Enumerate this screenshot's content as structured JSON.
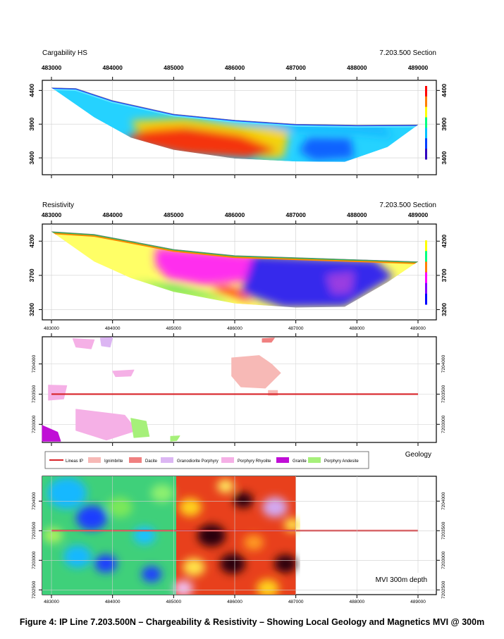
{
  "caption": "Figure 4: IP Line 7.203.500N – Chargeability & Resistivity – Showing Local Geology and Magnetics MVI @ 300m",
  "chart_data": [
    {
      "type": "heatmap",
      "id": "chargeability",
      "title": "Cargability HS",
      "subtitle": "7.203.500 Section",
      "x_ticks": [
        483000,
        484000,
        485000,
        486000,
        487000,
        488000,
        489000
      ],
      "y_ticks": [
        4400,
        3900,
        3400
      ],
      "xlim": [
        482850,
        489300
      ],
      "ylim": [
        3150,
        4550
      ],
      "surface": [
        [
          483000,
          4440
        ],
        [
          483400,
          4430
        ],
        [
          484000,
          4250
        ],
        [
          485000,
          4050
        ],
        [
          486000,
          3960
        ],
        [
          487000,
          3900
        ],
        [
          488000,
          3885
        ],
        [
          489000,
          3890
        ]
      ],
      "bottom": [
        [
          483000,
          4440
        ],
        [
          483700,
          4000
        ],
        [
          484300,
          3700
        ],
        [
          485000,
          3520
        ],
        [
          486000,
          3390
        ],
        [
          487000,
          3345
        ],
        [
          487800,
          3340
        ],
        [
          488500,
          3560
        ],
        [
          489000,
          3890
        ]
      ],
      "zones": [
        {
          "name": "high",
          "color": "#ff2a00",
          "poly": [
            [
              484200,
              3700
            ],
            [
              484800,
              3900
            ],
            [
              485500,
              3820
            ],
            [
              486300,
              3720
            ],
            [
              486700,
              3500
            ],
            [
              486200,
              3400
            ],
            [
              485200,
              3450
            ],
            [
              484500,
              3580
            ]
          ]
        },
        {
          "name": "moderate",
          "color": "#ffd400",
          "poly": [
            [
              484300,
              3950
            ],
            [
              485200,
              3990
            ],
            [
              486100,
              3880
            ],
            [
              486900,
              3820
            ],
            [
              486800,
              3400
            ],
            [
              486300,
              3380
            ],
            [
              486700,
              3520
            ],
            [
              486100,
              3740
            ],
            [
              485200,
              3860
            ],
            [
              484400,
              3800
            ]
          ]
        },
        {
          "name": "low",
          "color": "#0a5cff",
          "poly": [
            [
              487200,
              3700
            ],
            [
              487900,
              3690
            ],
            [
              487950,
              3400
            ],
            [
              487300,
              3360
            ],
            [
              487050,
              3500
            ]
          ]
        },
        {
          "name": "low-shallow",
          "color": "#19b8ff",
          "poly": [
            [
              485500,
              4080
            ],
            [
              487000,
              3960
            ],
            [
              488400,
              3910
            ],
            [
              488600,
              3700
            ],
            [
              487800,
              3770
            ],
            [
              486800,
              3800
            ]
          ]
        }
      ],
      "legend": [
        "#ff0000",
        "#ff8000",
        "#ffff00",
        "#00ff80",
        "#00c0ff",
        "#0040ff",
        "#3000c0"
      ]
    },
    {
      "type": "heatmap",
      "id": "resistivity",
      "title": "Resistivity",
      "subtitle": "7.203.500 Section",
      "x_ticks": [
        483000,
        484000,
        485000,
        486000,
        487000,
        488000,
        489000
      ],
      "y_ticks": [
        4200,
        3700,
        3200
      ],
      "xlim": [
        482850,
        489300
      ],
      "ylim": [
        3050,
        4450
      ],
      "surface": [
        [
          483000,
          4340
        ],
        [
          483700,
          4300
        ],
        [
          484300,
          4200
        ],
        [
          485000,
          4080
        ],
        [
          486000,
          3990
        ],
        [
          487000,
          3960
        ],
        [
          488000,
          3930
        ],
        [
          489000,
          3900
        ]
      ],
      "bottom": [
        [
          483000,
          4340
        ],
        [
          483700,
          3900
        ],
        [
          484300,
          3660
        ],
        [
          485000,
          3460
        ],
        [
          486000,
          3290
        ],
        [
          487000,
          3230
        ],
        [
          487800,
          3240
        ],
        [
          488500,
          3600
        ],
        [
          489000,
          3900
        ]
      ],
      "zones": [
        {
          "name": "conductive-magenta",
          "color": "#ff21f5",
          "poly": [
            [
              484700,
              4100
            ],
            [
              485600,
              4050
            ],
            [
              486400,
              3990
            ],
            [
              486200,
              3620
            ],
            [
              485500,
              3560
            ],
            [
              484900,
              3650
            ],
            [
              484700,
              3850
            ]
          ]
        },
        {
          "name": "resistive-blue",
          "color": "#2d1cf3",
          "poly": [
            [
              486300,
              3990
            ],
            [
              487500,
              3945
            ],
            [
              488300,
              3920
            ],
            [
              488600,
              3680
            ],
            [
              487800,
              3240
            ],
            [
              486800,
              3230
            ],
            [
              486100,
              3450
            ],
            [
              486200,
              3700
            ]
          ]
        },
        {
          "name": "green-band",
          "color": "#2fd85a",
          "poly": [
            [
              484300,
              3600
            ],
            [
              485000,
              3460
            ],
            [
              485800,
              3330
            ],
            [
              486000,
              3300
            ],
            [
              485700,
              3400
            ],
            [
              485000,
              3560
            ]
          ]
        },
        {
          "name": "red-band",
          "color": "#ff3000",
          "poly": [
            [
              485600,
              3500
            ],
            [
              486100,
              3360
            ],
            [
              486300,
              3300
            ],
            [
              486100,
              3480
            ],
            [
              485800,
              3560
            ]
          ]
        },
        {
          "name": "purple-patch",
          "color": "#a040e0",
          "poly": [
            [
              487500,
              3700
            ],
            [
              487950,
              3750
            ],
            [
              487900,
              3450
            ],
            [
              487600,
              3430
            ]
          ]
        }
      ],
      "legend": [
        "#ffffff",
        "#ffff00",
        "#00ff80",
        "#ff8000",
        "#ff00ff",
        "#8000ff",
        "#0000ff"
      ]
    },
    {
      "type": "map",
      "id": "geology",
      "title": "Geology",
      "x_ticks": [
        483000,
        484000,
        485000,
        486000,
        487000,
        488000,
        489000
      ],
      "y_ticks": [
        7204000,
        7203500,
        7203000
      ],
      "xlim": [
        482850,
        489300
      ],
      "ylim": [
        7202700,
        7204450
      ],
      "ip_line_y": 7203500,
      "ip_line_x": [
        483000,
        489000
      ],
      "units": [
        {
          "name": "Ignimbrite",
          "color": "#f7b9b6",
          "poly": [
            [
              485950,
              7204100
            ],
            [
              486400,
              7204140
            ],
            [
              486600,
              7204000
            ],
            [
              486750,
              7203850
            ],
            [
              486500,
              7203600
            ],
            [
              486100,
              7203620
            ],
            [
              485950,
              7203800
            ]
          ]
        },
        {
          "name": "Ignimbrite",
          "color": "#f7b9b6",
          "poly": [
            [
              486550,
              7203560
            ],
            [
              486700,
              7203560
            ],
            [
              486700,
              7203480
            ],
            [
              486550,
              7203480
            ]
          ]
        },
        {
          "name": "Porphyry Rhyolite",
          "color": "#f5b0e6",
          "poly": [
            [
              483400,
              7203250
            ],
            [
              484200,
              7203150
            ],
            [
              484400,
              7202900
            ],
            [
              483900,
              7202740
            ],
            [
              483400,
              7202900
            ]
          ]
        },
        {
          "name": "Porphyry Rhyolite",
          "color": "#f5b0e6",
          "poly": [
            [
              482950,
              7203650
            ],
            [
              483250,
              7203640
            ],
            [
              483200,
              7203420
            ],
            [
              482950,
              7203400
            ]
          ]
        },
        {
          "name": "Porphyry Rhyolite",
          "color": "#f5b0e6",
          "poly": [
            [
              484000,
              7203880
            ],
            [
              484350,
              7203900
            ],
            [
              484300,
              7203800
            ],
            [
              484050,
              7203790
            ]
          ]
        },
        {
          "name": "Porphyry Rhyolite",
          "color": "#f5b0e6",
          "poly": [
            [
              483350,
              7204420
            ],
            [
              483700,
              7204400
            ],
            [
              483650,
              7204250
            ],
            [
              483400,
              7204280
            ]
          ]
        },
        {
          "name": "Granodiorite Porphyry",
          "color": "#dcb6f3",
          "poly": [
            [
              483800,
              7204430
            ],
            [
              484000,
              7204440
            ],
            [
              483960,
              7204280
            ],
            [
              483820,
              7204300
            ]
          ]
        },
        {
          "name": "Porphyry Andesite",
          "color": "#a6f07a",
          "poly": [
            [
              484300,
              7203100
            ],
            [
              484550,
              7203050
            ],
            [
              484600,
              7202800
            ],
            [
              484350,
              7202780
            ]
          ]
        },
        {
          "name": "Porphyry Andesite",
          "color": "#a6f07a",
          "poly": [
            [
              484950,
              7202800
            ],
            [
              485100,
              7202810
            ],
            [
              485050,
              7202730
            ],
            [
              484950,
              7202720
            ]
          ]
        },
        {
          "name": "Granite",
          "color": "#c00ed6",
          "poly": [
            [
              482850,
              7202980
            ],
            [
              483100,
              7202870
            ],
            [
              483150,
              7202720
            ],
            [
              482850,
              7202720
            ]
          ]
        },
        {
          "name": "Dacite",
          "color": "#f08080",
          "poly": [
            [
              486450,
              7204420
            ],
            [
              486650,
              7204430
            ],
            [
              486600,
              7204360
            ],
            [
              486450,
              7204360
            ]
          ]
        }
      ]
    },
    {
      "type": "heatmap",
      "id": "magnetics",
      "title": "MVI 300m depth",
      "x_ticks": [
        483000,
        484000,
        485000,
        486000,
        487000,
        488000,
        489000
      ],
      "y_ticks": [
        7204000,
        7203500,
        7203000,
        7202500
      ],
      "xlim": [
        482850,
        489300
      ],
      "ylim": [
        7202420,
        7204420
      ],
      "data_extent_x": [
        482850,
        487000
      ],
      "ip_line_y": 7203500,
      "ip_line_x": [
        483000,
        489000
      ]
    }
  ],
  "legend": {
    "items": [
      {
        "label": "Lineas IP",
        "type": "line",
        "color": "#d8242a"
      },
      {
        "label": "Ignimbrite",
        "type": "box",
        "color": "#f7b9b6"
      },
      {
        "label": "Dacite",
        "type": "box",
        "color": "#f08080"
      },
      {
        "label": "Granodiorite Porphyry",
        "type": "box",
        "color": "#dcb6f3"
      },
      {
        "label": "Porphyry Rhyolite",
        "type": "box",
        "color": "#f5b0e6"
      },
      {
        "label": "Granite",
        "type": "box",
        "color": "#c00ed6"
      },
      {
        "label": "Porphyry Andesite",
        "type": "box",
        "color": "#a6f07a"
      }
    ]
  }
}
